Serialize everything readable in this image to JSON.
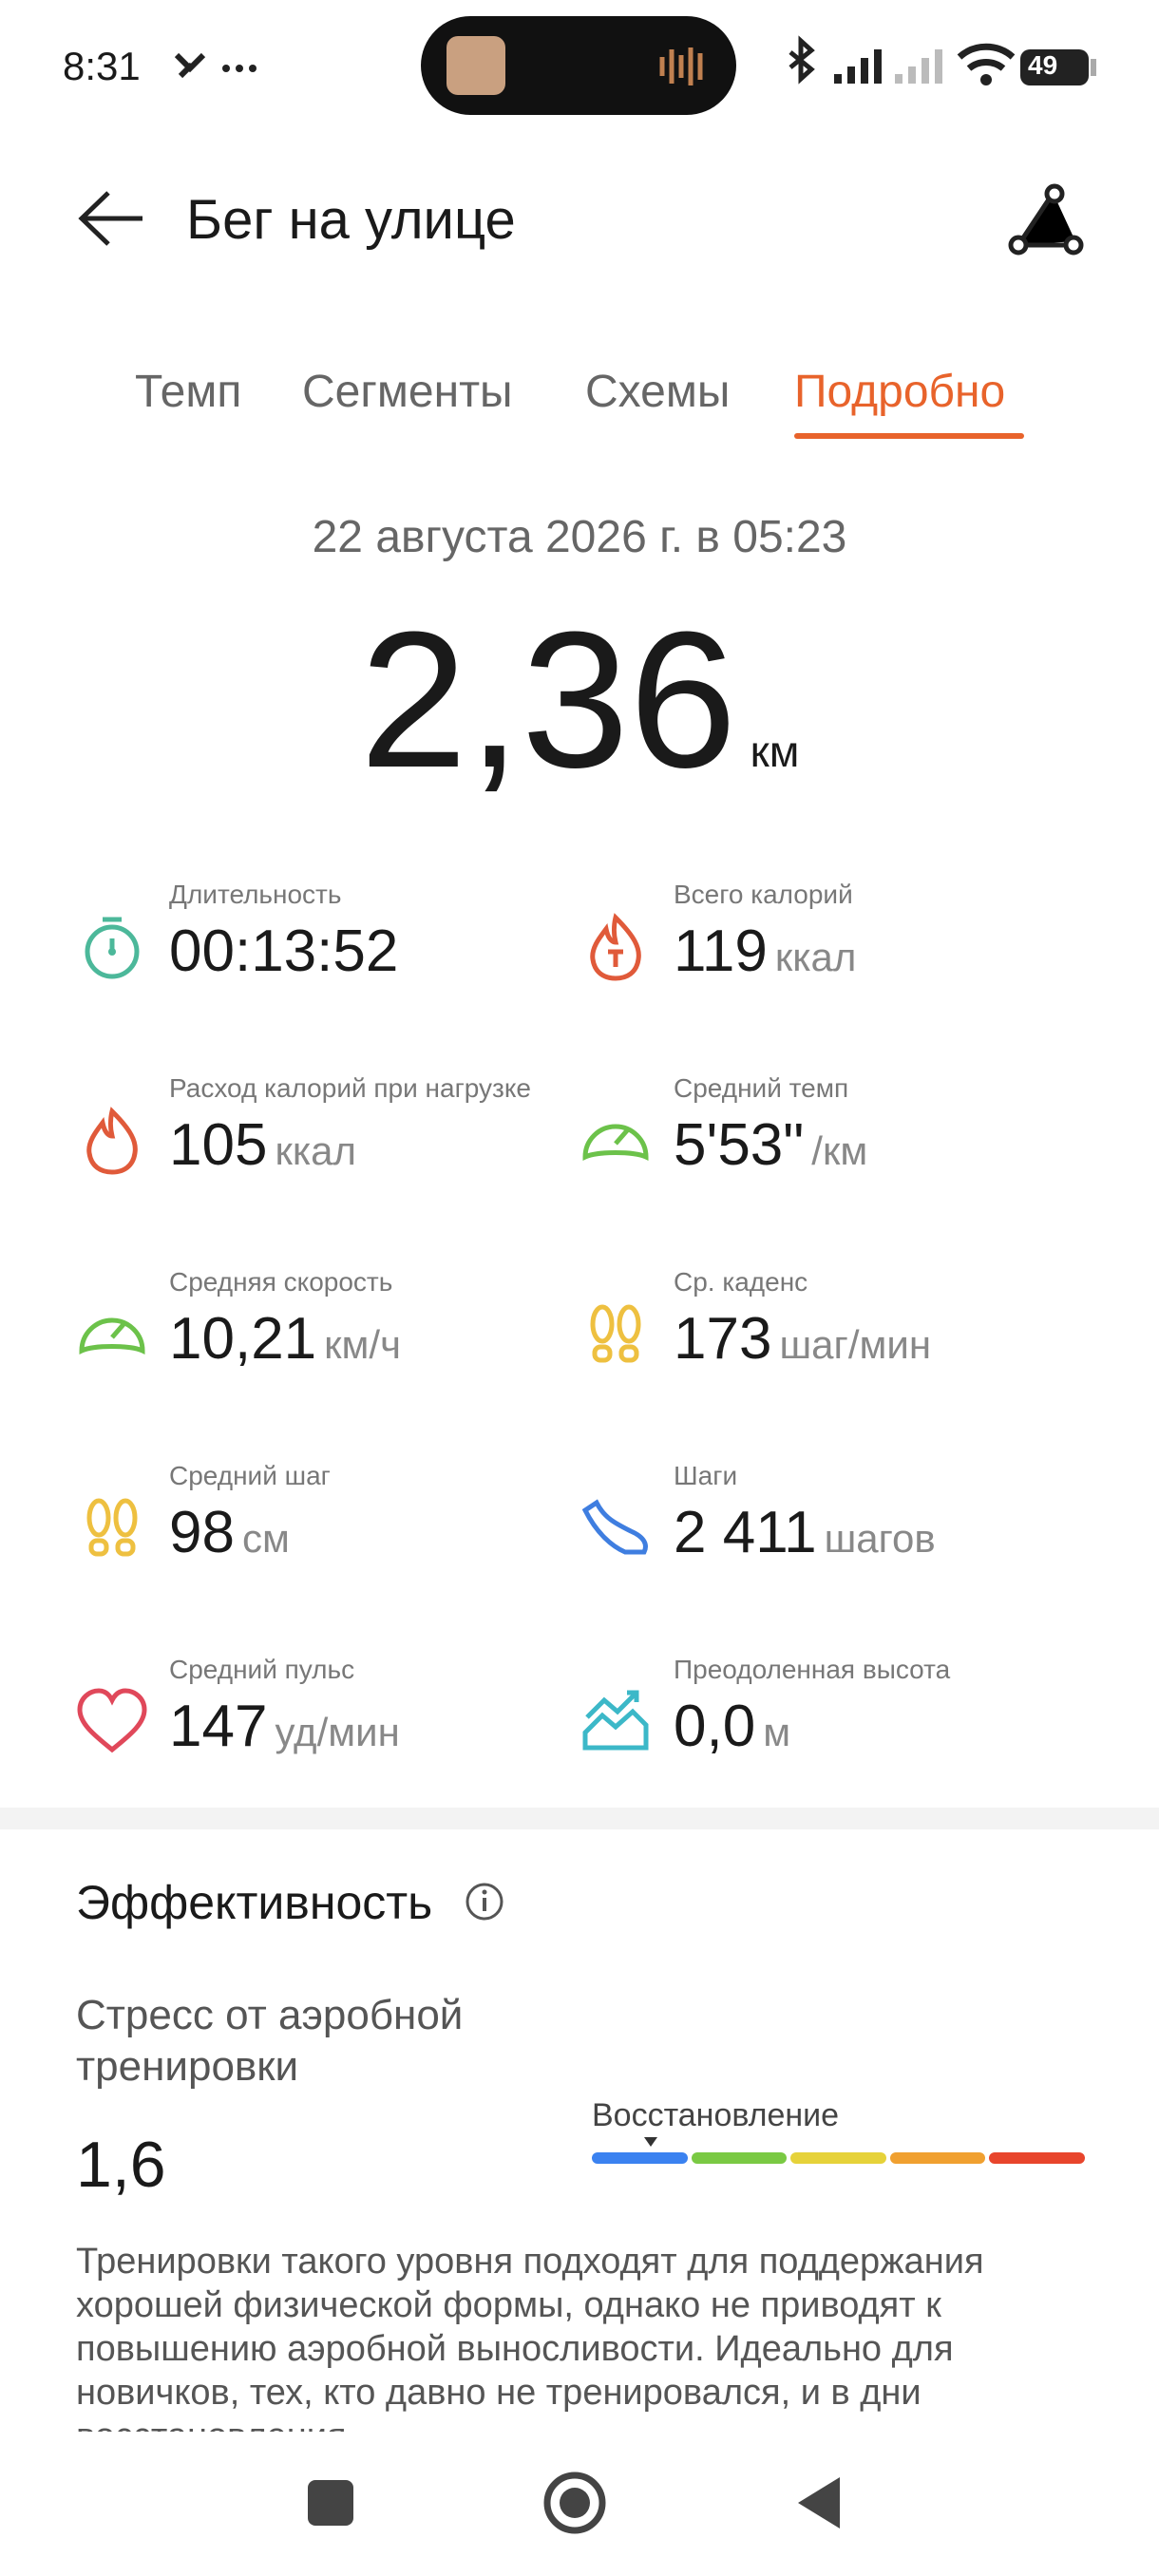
{
  "status_bar": {
    "time": "8:31",
    "battery": "49"
  },
  "header": {
    "title": "Бег на улице"
  },
  "tabs": [
    "Темп",
    "Сегменты",
    "Схемы",
    "Подробно"
  ],
  "active_tab": 3,
  "summary": {
    "date": "22 августа 2026 г. в 05:23",
    "distance": "2,36",
    "unit": "км"
  },
  "metrics": [
    {
      "label": "Длительность",
      "value": "00:13:52",
      "icon": "timer",
      "color": "#4cb89a"
    },
    {
      "label": "Всего калорий",
      "value": "119",
      "unit": "ккал",
      "icon": "fire-t",
      "color": "#e05a3a"
    },
    {
      "label": "Расход калорий при нагрузке",
      "value": "105",
      "unit": "ккал",
      "icon": "fire",
      "color": "#e05a3a"
    },
    {
      "label": "Средний темп",
      "value": "5'53\"",
      "unit": "/км",
      "icon": "gauge",
      "color": "#6cc24a"
    },
    {
      "label": "Средняя скорость",
      "value": "10,21",
      "unit": "км/ч",
      "icon": "gauge",
      "color": "#6cc24a"
    },
    {
      "label": "Ср. каденс",
      "value": "173",
      "unit": "шаг/мин",
      "icon": "feet",
      "color": "#eec040"
    },
    {
      "label": "Средний шаг",
      "value": "98",
      "unit": "см",
      "icon": "feet",
      "color": "#eec040"
    },
    {
      "label": "Шаги",
      "value": "2 411",
      "unit": "шагов",
      "icon": "shoe",
      "color": "#3f7ee0"
    },
    {
      "label": "Средний пульс",
      "value": "147",
      "unit": "уд/мин",
      "icon": "heart",
      "color": "#e0485a"
    },
    {
      "label": "Преодоленная высота",
      "value": "0,0",
      "unit": "м",
      "icon": "hill",
      "color": "#3cb8c8"
    }
  ],
  "effectiveness": {
    "title": "Эффективность",
    "subtitle": "Стресс от аэробной тренировки",
    "value": "1,6",
    "scale_label": "Восстановление",
    "scale_colors": [
      "#3b82f0",
      "#7ac943",
      "#e6d23a",
      "#f0a030",
      "#e8452c"
    ],
    "description": "Тренировки такого уровня подходят для поддержания хорошей физической формы, однако не приводят к повышению аэробной выносливости. Идеально для новичков, тех, кто давно не тренировался, и в дни восстановления."
  }
}
